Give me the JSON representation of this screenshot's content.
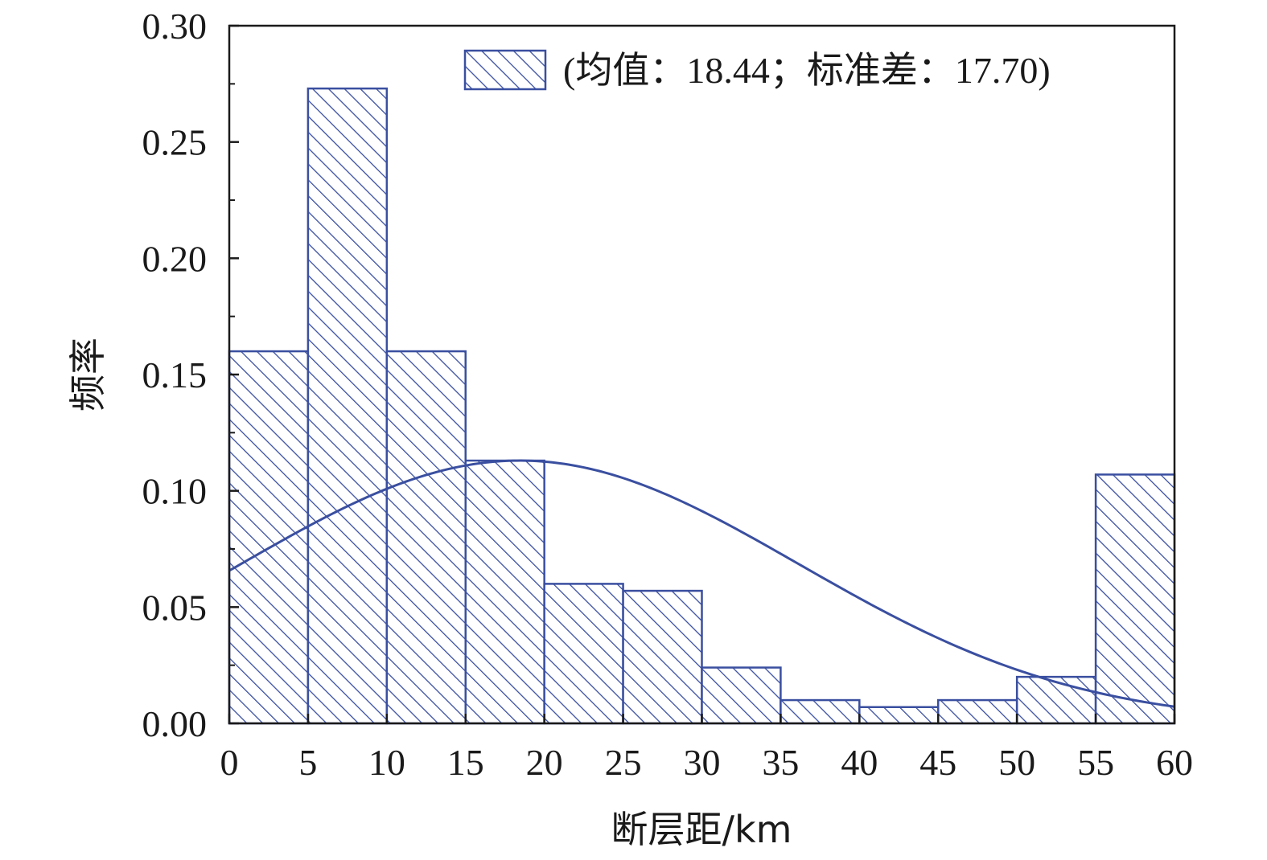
{
  "chart_data": {
    "type": "bar",
    "subtype": "histogram",
    "xlabel": "断层距/km",
    "ylabel": "频率",
    "xlim": [
      0,
      60
    ],
    "ylim": [
      0,
      0.3
    ],
    "x_ticks": [
      "0",
      "5",
      "10",
      "15",
      "20",
      "25",
      "30",
      "35",
      "40",
      "45",
      "50",
      "55",
      "60"
    ],
    "y_ticks": [
      "0.00",
      "0.05",
      "0.10",
      "0.15",
      "0.20",
      "0.25",
      "0.30"
    ],
    "bins": [
      {
        "from": 0,
        "to": 5,
        "value": 0.16
      },
      {
        "from": 5,
        "to": 10,
        "value": 0.273
      },
      {
        "from": 10,
        "to": 15,
        "value": 0.16
      },
      {
        "from": 15,
        "to": 20,
        "value": 0.113
      },
      {
        "from": 20,
        "to": 25,
        "value": 0.06
      },
      {
        "from": 25,
        "to": 30,
        "value": 0.057
      },
      {
        "from": 30,
        "to": 35,
        "value": 0.024
      },
      {
        "from": 35,
        "to": 40,
        "value": 0.01
      },
      {
        "from": 40,
        "to": 45,
        "value": 0.007
      },
      {
        "from": 45,
        "to": 50,
        "value": 0.01
      },
      {
        "from": 50,
        "to": 55,
        "value": 0.02
      },
      {
        "from": 55,
        "to": 60,
        "value": 0.107
      }
    ],
    "fit_curve": {
      "type": "normal",
      "mean": 18.44,
      "std": 17.7,
      "peak": 0.113
    },
    "legend": {
      "label": "(均值：18.44；标准差：17.70)",
      "position": "top-right"
    },
    "grid": false,
    "colors": {
      "bar_edge": "#3a4fa0",
      "hatch": "#3a4fa0",
      "curve": "#3a4fa0",
      "axis": "#1a1a1a"
    }
  }
}
